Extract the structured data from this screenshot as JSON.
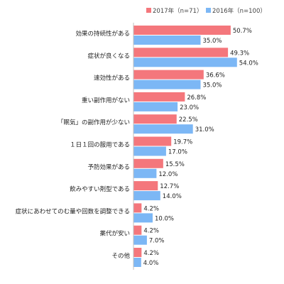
{
  "chart_data": {
    "type": "bar",
    "orientation": "horizontal",
    "legend": {
      "placement": "top"
    },
    "xlim": [
      0,
      60
    ],
    "grid": false,
    "categories": [
      "効果の持続性がある",
      "症状が良くなる",
      "速効性がある",
      "重い副作用がない",
      "「眠気」の副作用が少ない",
      "１日１回の服用である",
      "予防効果がある",
      "飲みやすい剤型である",
      "症状にあわせてのむ量や回数を調整できる",
      "薬代が安い",
      "その他"
    ],
    "series": [
      {
        "name": "2017年（n=71）",
        "color": "#f4777c",
        "values": [
          50.7,
          49.3,
          36.6,
          26.8,
          22.5,
          19.7,
          15.5,
          12.7,
          4.2,
          4.2,
          4.2
        ],
        "labels": [
          "50.7%",
          "49.3%",
          "36.6%",
          "26.8%",
          "22.5%",
          "19.7%",
          "15.5%",
          "12.7%",
          "4.2%",
          "4.2%",
          "4.2%"
        ]
      },
      {
        "name": "2016年（n=100）",
        "color": "#7cb7f5",
        "values": [
          35.0,
          54.0,
          35.0,
          23.0,
          31.0,
          17.0,
          12.0,
          14.0,
          10.0,
          7.0,
          4.0
        ],
        "labels": [
          "35.0%",
          "54.0%",
          "35.0%",
          "23.0%",
          "31.0%",
          "17.0%",
          "12.0%",
          "14.0%",
          "10.0%",
          "7.0%",
          "4.0%"
        ]
      }
    ]
  }
}
